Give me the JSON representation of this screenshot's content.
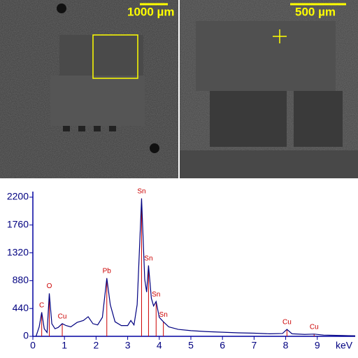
{
  "images": [
    {
      "scale_label": "1000 µm"
    },
    {
      "scale_label": "500 µm"
    }
  ],
  "chart_data": {
    "type": "line",
    "x_label": "keV",
    "x": [
      0.1,
      0.2,
      0.28,
      0.36,
      0.45,
      0.52,
      0.6,
      0.7,
      0.8,
      0.93,
      1.05,
      1.2,
      1.4,
      1.6,
      1.75,
      1.9,
      2.05,
      2.2,
      2.34,
      2.45,
      2.6,
      2.8,
      3.0,
      3.1,
      3.2,
      3.3,
      3.44,
      3.54,
      3.6,
      3.66,
      3.75,
      3.82,
      3.9,
      4.0,
      4.13,
      4.3,
      4.6,
      5.0,
      5.5,
      6.0,
      6.5,
      7.0,
      7.5,
      7.9,
      8.04,
      8.2,
      8.6,
      8.9,
      9.2,
      9.6,
      10.0,
      10.2
    ],
    "series": [
      {
        "color": "#000080",
        "values": [
          0,
          150,
          380,
          120,
          60,
          680,
          200,
          120,
          140,
          200,
          170,
          150,
          220,
          250,
          310,
          200,
          180,
          300,
          920,
          500,
          230,
          170,
          170,
          250,
          180,
          500,
          2180,
          900,
          700,
          1120,
          600,
          480,
          550,
          300,
          230,
          150,
          110,
          90,
          75,
          65,
          55,
          50,
          40,
          45,
          110,
          40,
          30,
          35,
          20,
          15,
          10,
          8
        ]
      }
    ],
    "peaks": [
      {
        "label": "C",
        "x": 0.28,
        "y": 380
      },
      {
        "label": "O",
        "x": 0.52,
        "y": 680
      },
      {
        "label": "Cu",
        "x": 0.93,
        "y": 200
      },
      {
        "label": "Pb",
        "x": 2.34,
        "y": 920
      },
      {
        "label": "Sn",
        "x": 3.44,
        "y": 2180
      },
      {
        "label": "Sn",
        "x": 3.66,
        "y": 1120
      },
      {
        "label": "Sn",
        "x": 3.9,
        "y": 550
      },
      {
        "label": "Sn",
        "x": 4.13,
        "y": 230
      },
      {
        "label": "Cu",
        "x": 8.04,
        "y": 110
      },
      {
        "label": "Cu",
        "x": 8.9,
        "y": 35
      }
    ],
    "peak_color": "#cc0000",
    "xlim": [
      0,
      10.2
    ],
    "xticks": [
      0,
      1,
      2,
      3,
      4,
      5,
      6,
      7,
      8,
      9
    ],
    "ylim": [
      0,
      2200
    ],
    "yticks": [
      0,
      440,
      880,
      1320,
      1760,
      2200
    ],
    "grid": false
  }
}
